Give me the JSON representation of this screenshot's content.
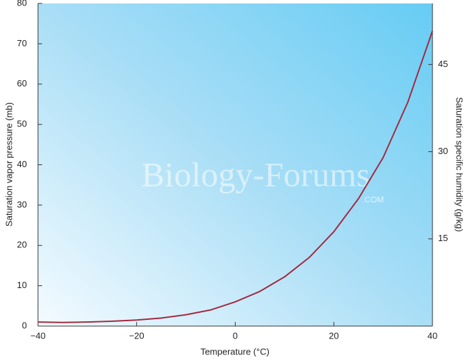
{
  "chart_data": {
    "type": "line",
    "xlabel": "Temperature (°C)",
    "ylabel": "Saturation vapor pressure (mb)",
    "y2label": "Saturation specific humidity (g/kg)",
    "watermark": "Biology-Forums",
    "watermark_sub": ".COM",
    "x": [
      -40,
      -35,
      -30,
      -25,
      -20,
      -15,
      -10,
      -5,
      0,
      5,
      10,
      15,
      20,
      25,
      30,
      35,
      40
    ],
    "series": [
      {
        "color": "#a3283f",
        "values": [
          1.0,
          0.9,
          1.0,
          1.2,
          1.5,
          2.0,
          2.8,
          4.0,
          6.0,
          8.6,
          12.2,
          17.0,
          23.4,
          31.6,
          41.8,
          55.5,
          73.2
        ]
      }
    ],
    "xlim": [
      -40,
      40
    ],
    "xticks": [
      {
        "value": -40,
        "label": "−40"
      },
      {
        "value": -20,
        "label": "−20"
      },
      0,
      20,
      40
    ],
    "ylim": [
      0,
      80
    ],
    "yticks": [
      0,
      10,
      20,
      30,
      40,
      50,
      60,
      70,
      80
    ],
    "y2lim": [
      0,
      55.5
    ],
    "y2ticks": [
      15,
      30,
      45
    ]
  }
}
